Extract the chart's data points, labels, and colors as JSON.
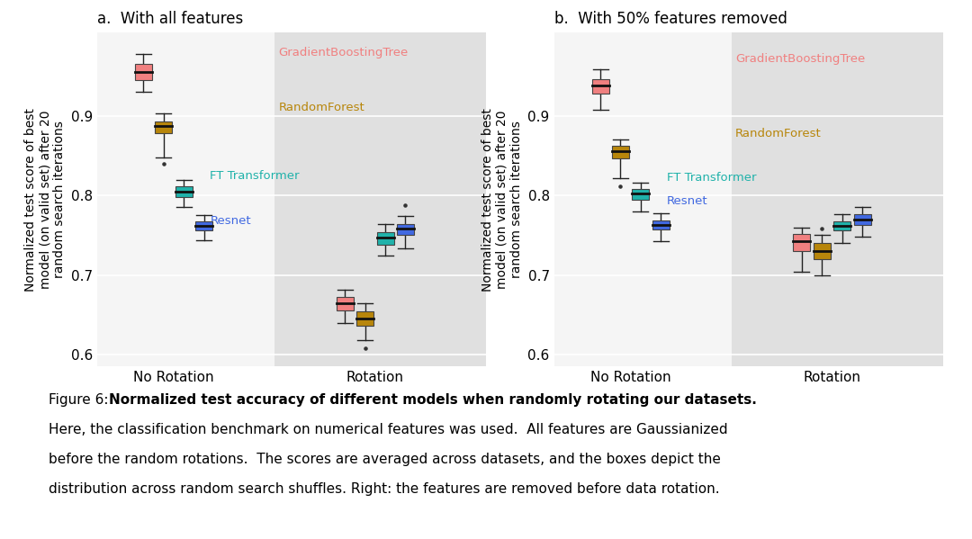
{
  "panel_a_title": "a.  With all features",
  "panel_b_title": "b.  With 50% features removed",
  "ylabel": "Normalized test score of best\nmodel (on valid set) after 20\nrandom search iterations",
  "xtick_labels": [
    "No Rotation",
    "Rotation"
  ],
  "ylim": [
    0.585,
    1.005
  ],
  "yticks": [
    0.6,
    0.7,
    0.8,
    0.9
  ],
  "colors": {
    "GradientBoostingTree": "#F08080",
    "RandomForest": "#B8860B",
    "FTTransformer": "#20B2AA",
    "Resnet": "#4169E1"
  },
  "panel_a": {
    "no_rotation": {
      "GradientBoostingTree": {
        "q1": 0.945,
        "median": 0.955,
        "q3": 0.965,
        "whislo": 0.93,
        "whishi": 0.978,
        "fliers": []
      },
      "RandomForest": {
        "q1": 0.878,
        "median": 0.887,
        "q3": 0.893,
        "whislo": 0.848,
        "whishi": 0.903,
        "fliers": [
          0.84
        ]
      },
      "FTTransformer": {
        "q1": 0.798,
        "median": 0.805,
        "q3": 0.812,
        "whislo": 0.786,
        "whishi": 0.82,
        "fliers": []
      },
      "Resnet": {
        "q1": 0.756,
        "median": 0.762,
        "q3": 0.768,
        "whislo": 0.744,
        "whishi": 0.775,
        "fliers": []
      }
    },
    "rotation": {
      "GradientBoostingTree": {
        "q1": 0.656,
        "median": 0.664,
        "q3": 0.672,
        "whislo": 0.64,
        "whishi": 0.682,
        "fliers": []
      },
      "RandomForest": {
        "q1": 0.636,
        "median": 0.645,
        "q3": 0.654,
        "whislo": 0.618,
        "whishi": 0.664,
        "fliers": [
          0.608
        ]
      },
      "FTTransformer": {
        "q1": 0.738,
        "median": 0.747,
        "q3": 0.754,
        "whislo": 0.724,
        "whishi": 0.764,
        "fliers": []
      },
      "Resnet": {
        "q1": 0.75,
        "median": 0.758,
        "q3": 0.764,
        "whislo": 0.734,
        "whishi": 0.774,
        "fliers": [
          0.788
        ]
      }
    }
  },
  "panel_b": {
    "no_rotation": {
      "GradientBoostingTree": {
        "q1": 0.928,
        "median": 0.938,
        "q3": 0.946,
        "whislo": 0.908,
        "whishi": 0.958,
        "fliers": []
      },
      "RandomForest": {
        "q1": 0.847,
        "median": 0.856,
        "q3": 0.862,
        "whislo": 0.822,
        "whishi": 0.87,
        "fliers": [
          0.812
        ]
      },
      "FTTransformer": {
        "q1": 0.795,
        "median": 0.803,
        "q3": 0.808,
        "whislo": 0.78,
        "whishi": 0.816,
        "fliers": []
      },
      "Resnet": {
        "q1": 0.757,
        "median": 0.763,
        "q3": 0.769,
        "whislo": 0.742,
        "whishi": 0.778,
        "fliers": []
      }
    },
    "rotation": {
      "GradientBoostingTree": {
        "q1": 0.73,
        "median": 0.742,
        "q3": 0.752,
        "whislo": 0.704,
        "whishi": 0.76,
        "fliers": []
      },
      "RandomForest": {
        "q1": 0.72,
        "median": 0.73,
        "q3": 0.74,
        "whislo": 0.7,
        "whishi": 0.75,
        "fliers": [
          0.758
        ]
      },
      "FTTransformer": {
        "q1": 0.756,
        "median": 0.762,
        "q3": 0.768,
        "whislo": 0.74,
        "whishi": 0.776,
        "fliers": []
      },
      "Resnet": {
        "q1": 0.763,
        "median": 0.77,
        "q3": 0.777,
        "whislo": 0.748,
        "whishi": 0.786,
        "fliers": []
      }
    }
  },
  "caption_prefix": "Figure 6: ",
  "caption_bold": "Normalized test accuracy of different models when randomly rotating our datasets.",
  "caption_line2": "Here, the classification benchmark on numerical features was used.  All features are Gaussianized",
  "caption_line3": "before the random rotations.  The scores are averaged across datasets, and the boxes depict the",
  "caption_line4": "distribution across random search shuffles. Right: the features are removed before data rotation.",
  "plot_bg_light": "#f5f5f5",
  "plot_bg_gray": "#e0e0e0"
}
